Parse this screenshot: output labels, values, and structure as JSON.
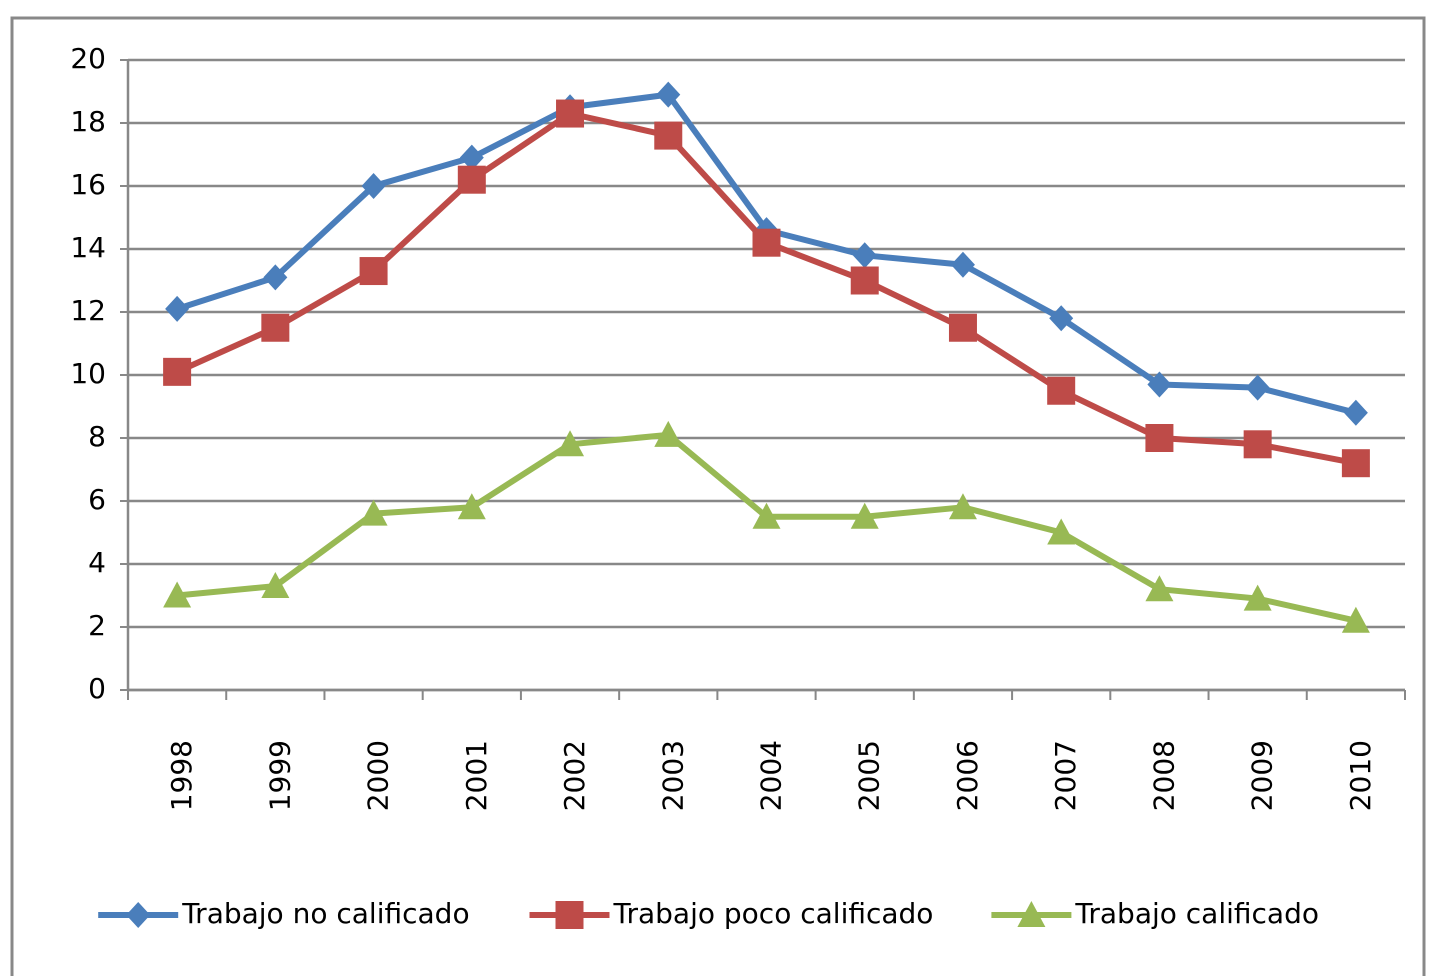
{
  "chart_data": {
    "type": "line",
    "categories": [
      "1998",
      "1999",
      "2000",
      "2001",
      "2002",
      "2003",
      "2004",
      "2005",
      "2006",
      "2007",
      "2008",
      "2009",
      "2010"
    ],
    "series": [
      {
        "name": "Trabajo no calificado",
        "color": "#4a7ebb",
        "marker": "diamond",
        "values": [
          12.1,
          13.1,
          16.0,
          16.9,
          18.5,
          18.9,
          14.6,
          13.8,
          13.5,
          11.8,
          9.7,
          9.6,
          8.8
        ]
      },
      {
        "name": "Trabajo poco calificado",
        "color": "#be4b48",
        "marker": "square",
        "values": [
          10.1,
          11.5,
          13.3,
          16.2,
          18.3,
          17.6,
          14.2,
          13.0,
          11.5,
          9.5,
          8.0,
          7.8,
          7.2
        ]
      },
      {
        "name": "Trabajo calificado",
        "color": "#98b954",
        "marker": "triangle",
        "values": [
          3.0,
          3.3,
          5.6,
          5.8,
          7.8,
          8.1,
          5.5,
          5.5,
          5.8,
          5.0,
          3.2,
          2.9,
          2.2
        ]
      }
    ],
    "ylim": [
      0,
      20
    ],
    "yticks": [
      0,
      2,
      4,
      6,
      8,
      10,
      12,
      14,
      16,
      18,
      20
    ],
    "grid": true,
    "legend": "bottom"
  }
}
